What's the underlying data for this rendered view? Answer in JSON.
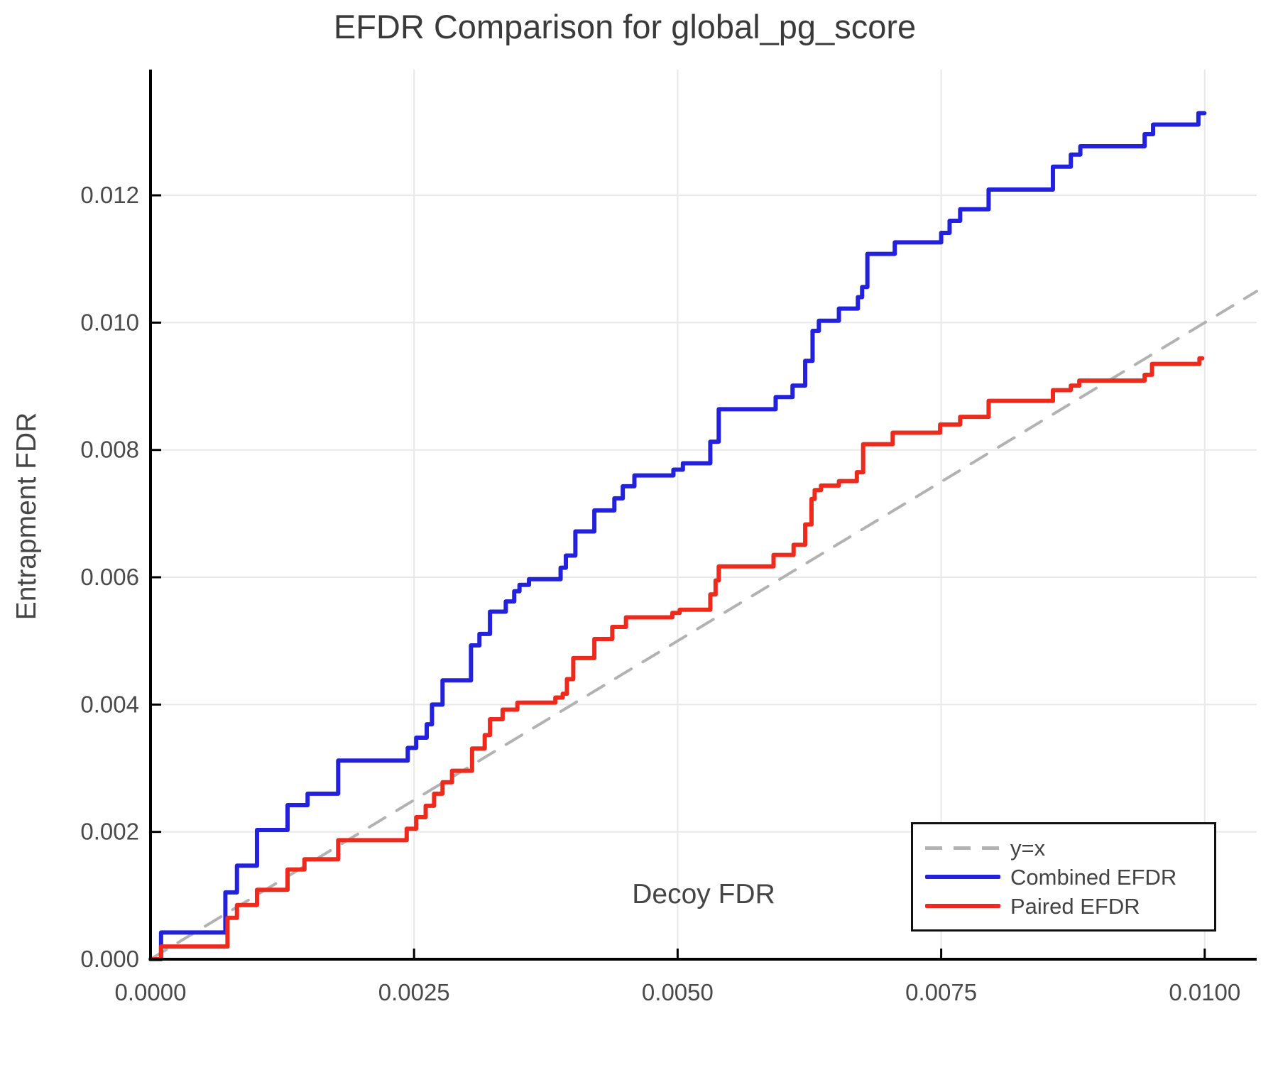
{
  "chart": {
    "title": "EFDR Comparison for global_pg_score",
    "xlabel": "Decoy FDR",
    "ylabel": "Entrapment FDR"
  },
  "legend": {
    "position": "bottom-right",
    "items": [
      {
        "label": "y=x",
        "color": "#b2b2b2",
        "style": "dashed"
      },
      {
        "label": "Combined EFDR",
        "color": "#2222dd",
        "style": "solid"
      },
      {
        "label": "Paired EFDR",
        "color": "#ee2a1c",
        "style": "solid"
      }
    ]
  },
  "colors": {
    "combined": "#2222dd",
    "paired": "#ee2a1c",
    "identity": "#b2b2b2",
    "grid": "#e8e8e8",
    "spine": "#000000",
    "text": "#454545",
    "tick_text": "#4a4a4a",
    "background": "#ffffff"
  },
  "chart_data": {
    "type": "line",
    "subtype": "step-post",
    "title": "EFDR Comparison for global_pg_score",
    "xlabel": "Decoy FDR",
    "ylabel": "Entrapment FDR",
    "grid": true,
    "legend_position": "bottom-right",
    "xlim": [
      0.0,
      0.010493
    ],
    "ylim": [
      0.0,
      0.013975
    ],
    "x_ticks": {
      "values": [
        0.0,
        0.0025,
        0.005,
        0.0075,
        0.01
      ],
      "labels": [
        "0.0000",
        "0.0025",
        "0.0050",
        "0.0075",
        "0.0100"
      ]
    },
    "y_ticks": {
      "values": [
        0.0,
        0.002,
        0.004,
        0.006,
        0.008,
        0.01,
        0.012
      ],
      "labels": [
        "0.000",
        "0.002",
        "0.004",
        "0.006",
        "0.008",
        "0.010",
        "0.012"
      ]
    },
    "series": [
      {
        "name": "y=x",
        "color": "#b2b2b2",
        "style": "dashed",
        "interpolation": "linear",
        "points": [
          [
            0.0,
            0.0
          ],
          [
            0.010493,
            0.010493
          ]
        ]
      },
      {
        "name": "Combined EFDR",
        "color": "#2222dd",
        "style": "solid",
        "interpolation": "step-post",
        "points": [
          [
            0.0,
            0.0
          ],
          [
            0.0001,
            0.00042
          ],
          [
            0.00071,
            0.00105
          ],
          [
            0.00082,
            0.00147
          ],
          [
            0.00101,
            0.00203
          ],
          [
            0.0013,
            0.00242
          ],
          [
            0.00149,
            0.0026
          ],
          [
            0.00178,
            0.00312
          ],
          [
            0.00244,
            0.00332
          ],
          [
            0.00252,
            0.00348
          ],
          [
            0.00262,
            0.00369
          ],
          [
            0.00267,
            0.004
          ],
          [
            0.00277,
            0.00438
          ],
          [
            0.00304,
            0.00493
          ],
          [
            0.00312,
            0.00511
          ],
          [
            0.00322,
            0.00546
          ],
          [
            0.00337,
            0.00562
          ],
          [
            0.00345,
            0.00578
          ],
          [
            0.0035,
            0.00588
          ],
          [
            0.00359,
            0.00597
          ],
          [
            0.00389,
            0.00615
          ],
          [
            0.00394,
            0.00634
          ],
          [
            0.00403,
            0.00672
          ],
          [
            0.00421,
            0.00705
          ],
          [
            0.0044,
            0.00724
          ],
          [
            0.00448,
            0.00743
          ],
          [
            0.00459,
            0.0076
          ],
          [
            0.00496,
            0.00769
          ],
          [
            0.00505,
            0.00779
          ],
          [
            0.00531,
            0.00813
          ],
          [
            0.00539,
            0.00864
          ],
          [
            0.00593,
            0.00883
          ],
          [
            0.00609,
            0.00901
          ],
          [
            0.00621,
            0.0094
          ],
          [
            0.00628,
            0.00987
          ],
          [
            0.00634,
            0.01003
          ],
          [
            0.00653,
            0.01022
          ],
          [
            0.00671,
            0.0104
          ],
          [
            0.00675,
            0.01056
          ],
          [
            0.0068,
            0.01108
          ],
          [
            0.00706,
            0.01126
          ],
          [
            0.0075,
            0.01141
          ],
          [
            0.00758,
            0.0116
          ],
          [
            0.00768,
            0.01178
          ],
          [
            0.00795,
            0.01209
          ],
          [
            0.00856,
            0.01245
          ],
          [
            0.00873,
            0.01264
          ],
          [
            0.00882,
            0.01277
          ],
          [
            0.00943,
            0.01296
          ],
          [
            0.00951,
            0.01311
          ],
          [
            0.00994,
            0.01329
          ],
          [
            0.00997,
            0.01329
          ]
        ]
      },
      {
        "name": "Paired EFDR",
        "color": "#ee2a1c",
        "style": "solid",
        "interpolation": "step-post",
        "points": [
          [
            0.0,
            0.0
          ],
          [
            0.0001,
            0.0002
          ],
          [
            0.00073,
            0.00065
          ],
          [
            0.00082,
            0.00085
          ],
          [
            0.00101,
            0.00109
          ],
          [
            0.0013,
            0.00141
          ],
          [
            0.00146,
            0.00157
          ],
          [
            0.00178,
            0.00187
          ],
          [
            0.00243,
            0.00205
          ],
          [
            0.00252,
            0.00223
          ],
          [
            0.00261,
            0.00241
          ],
          [
            0.00269,
            0.0026
          ],
          [
            0.00277,
            0.00278
          ],
          [
            0.00286,
            0.00296
          ],
          [
            0.00305,
            0.00331
          ],
          [
            0.00317,
            0.00352
          ],
          [
            0.00322,
            0.00377
          ],
          [
            0.00334,
            0.00392
          ],
          [
            0.00348,
            0.00403
          ],
          [
            0.00384,
            0.00411
          ],
          [
            0.00391,
            0.00417
          ],
          [
            0.00395,
            0.0044
          ],
          [
            0.00401,
            0.00473
          ],
          [
            0.00421,
            0.00503
          ],
          [
            0.00438,
            0.00522
          ],
          [
            0.00451,
            0.00537
          ],
          [
            0.00495,
            0.00544
          ],
          [
            0.00502,
            0.00549
          ],
          [
            0.00531,
            0.00573
          ],
          [
            0.00536,
            0.00595
          ],
          [
            0.00539,
            0.00617
          ],
          [
            0.00591,
            0.00635
          ],
          [
            0.0061,
            0.00651
          ],
          [
            0.00621,
            0.00683
          ],
          [
            0.00627,
            0.00723
          ],
          [
            0.0063,
            0.00737
          ],
          [
            0.00636,
            0.00744
          ],
          [
            0.00653,
            0.00751
          ],
          [
            0.0067,
            0.00765
          ],
          [
            0.00676,
            0.00809
          ],
          [
            0.00704,
            0.00827
          ],
          [
            0.00749,
            0.0084
          ],
          [
            0.00768,
            0.00852
          ],
          [
            0.00795,
            0.00877
          ],
          [
            0.00856,
            0.00894
          ],
          [
            0.00873,
            0.00901
          ],
          [
            0.00881,
            0.00909
          ],
          [
            0.00943,
            0.00918
          ],
          [
            0.0095,
            0.00935
          ],
          [
            0.00995,
            0.00944
          ]
        ]
      }
    ]
  }
}
